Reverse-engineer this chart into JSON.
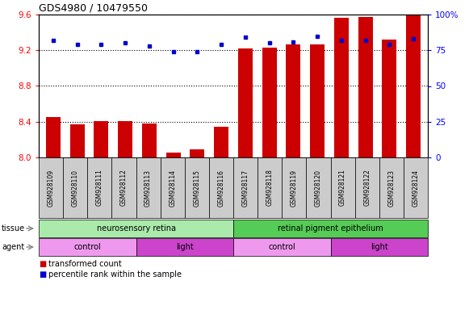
{
  "title": "GDS4980 / 10479550",
  "samples": [
    "GSM928109",
    "GSM928110",
    "GSM928111",
    "GSM928112",
    "GSM928113",
    "GSM928114",
    "GSM928115",
    "GSM928116",
    "GSM928117",
    "GSM928118",
    "GSM928119",
    "GSM928120",
    "GSM928121",
    "GSM928122",
    "GSM928123",
    "GSM928124"
  ],
  "bar_values": [
    8.45,
    8.37,
    8.41,
    8.41,
    8.38,
    8.05,
    8.09,
    8.34,
    9.22,
    9.23,
    9.27,
    9.27,
    9.56,
    9.57,
    9.32,
    9.59
  ],
  "dot_values": [
    82,
    79,
    79,
    80,
    78,
    74,
    74,
    79,
    84,
    80,
    81,
    85,
    82,
    82,
    79,
    83
  ],
  "bar_color": "#cc0000",
  "dot_color": "#0000cc",
  "ymin": 8.0,
  "ymax": 9.6,
  "y2min": 0,
  "y2max": 100,
  "yticks": [
    8.0,
    8.4,
    8.8,
    9.2,
    9.6
  ],
  "y2ticks": [
    0,
    25,
    50,
    75,
    100
  ],
  "y2ticklabels": [
    "0",
    "25",
    "50",
    "75",
    "100%"
  ],
  "tissue_groups": [
    {
      "label": "neurosensory retina",
      "start": 0,
      "end": 8,
      "color": "#aaeaaa"
    },
    {
      "label": "retinal pigment epithelium",
      "start": 8,
      "end": 16,
      "color": "#55cc55"
    }
  ],
  "agent_groups": [
    {
      "label": "control",
      "start": 0,
      "end": 4,
      "color": "#ee99ee"
    },
    {
      "label": "light",
      "start": 4,
      "end": 8,
      "color": "#cc44cc"
    },
    {
      "label": "control",
      "start": 8,
      "end": 12,
      "color": "#ee99ee"
    },
    {
      "label": "light",
      "start": 12,
      "end": 16,
      "color": "#cc44cc"
    }
  ],
  "legend_items": [
    {
      "label": "transformed count",
      "color": "#cc0000"
    },
    {
      "label": "percentile rank within the sample",
      "color": "#0000cc"
    }
  ],
  "tissue_label": "tissue",
  "agent_label": "agent",
  "xticklabel_bg": "#cccccc",
  "background_color": "#ffffff"
}
